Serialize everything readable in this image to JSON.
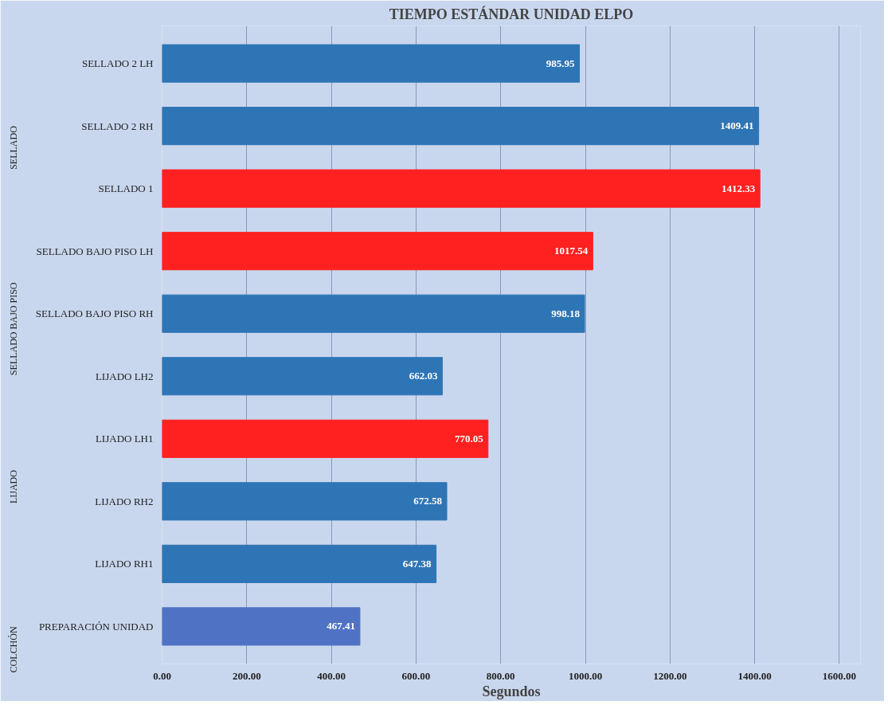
{
  "chart_data": {
    "type": "bar",
    "orientation": "horizontal",
    "title": "TIEMPO ESTÁNDAR UNIDAD ELPO",
    "xlabel": "Segundos",
    "categories": [
      "SELLADO 2 LH",
      "SELLADO 2 RH",
      "SELLADO 1",
      "SELLADO BAJO PISO LH",
      "SELLADO BAJO PISO RH",
      "LIJADO LH2",
      "LIJADO LH1",
      "LIJADO RH2",
      "LIJADO RH1",
      "PREPARACIÓN UNIDAD"
    ],
    "values": [
      985.95,
      1409.41,
      1412.33,
      1017.54,
      998.18,
      662.03,
      770.05,
      672.58,
      647.38,
      467.41
    ],
    "colors": [
      "#2e75b6",
      "#2e75b6",
      "#ff2020",
      "#ff2020",
      "#2e75b6",
      "#2e75b6",
      "#ff2020",
      "#2e75b6",
      "#2e75b6",
      "#4f72c4"
    ],
    "xlim": [
      0,
      1650
    ],
    "xticks": [
      {
        "value": 0,
        "label": "0.00"
      },
      {
        "value": 200,
        "label": "200.00"
      },
      {
        "value": 400,
        "label": "400.00"
      },
      {
        "value": 600,
        "label": "600.00"
      },
      {
        "value": 800,
        "label": "800.00"
      },
      {
        "value": 1000,
        "label": "1000.00"
      },
      {
        "value": 1200,
        "label": "1200.00"
      },
      {
        "value": 1400,
        "label": "1400.00"
      },
      {
        "value": 1600,
        "label": "1600.00"
      }
    ],
    "grid": "x",
    "data_labels": true,
    "annotations": [
      "SELLADO",
      "SELLADO BAJO PISO",
      "LIJADO",
      "COLCHÓN"
    ]
  }
}
